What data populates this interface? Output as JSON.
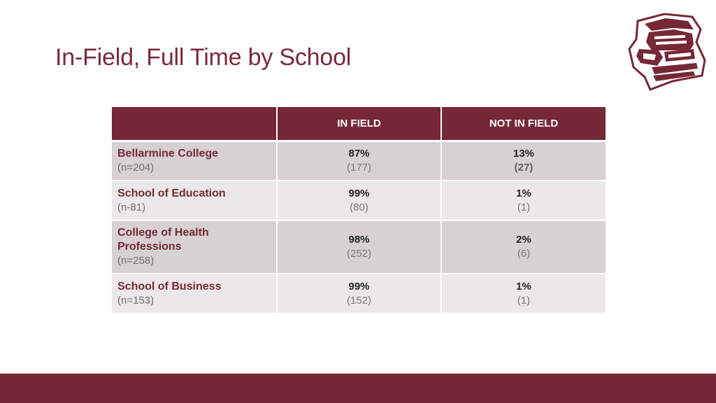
{
  "slide": {
    "title": "In-Field, Full Time by School"
  },
  "colors": {
    "brand": "#762837",
    "title": "#7a2a3a",
    "row_dark": "#d7d1d2",
    "row_light": "#ebe8e9"
  },
  "logo": {
    "icon": "knight-helmet-icon"
  },
  "table": {
    "headers": [
      "",
      "IN FIELD",
      "NOT IN FIELD"
    ],
    "rows": [
      {
        "school": "Bellarmine College",
        "n": "(n=204)",
        "in_field_pct": "87%",
        "in_field_count": "(177)",
        "not_in_field_pct": "13%",
        "not_in_field_count": "(27)"
      },
      {
        "school": "School of Education",
        "n": "(n-81)",
        "in_field_pct": "99%",
        "in_field_count": "(80)",
        "not_in_field_pct": "1%",
        "not_in_field_count": "(1)"
      },
      {
        "school": "College of Health Professions",
        "n": "(n=258)",
        "in_field_pct": "98%",
        "in_field_count": "(252)",
        "not_in_field_pct": "2%",
        "not_in_field_count": "(6)"
      },
      {
        "school": "School of Business",
        "n": "(n=153)",
        "in_field_pct": "99%",
        "in_field_count": "(152)",
        "not_in_field_pct": "1%",
        "not_in_field_count": "(1)"
      }
    ]
  }
}
